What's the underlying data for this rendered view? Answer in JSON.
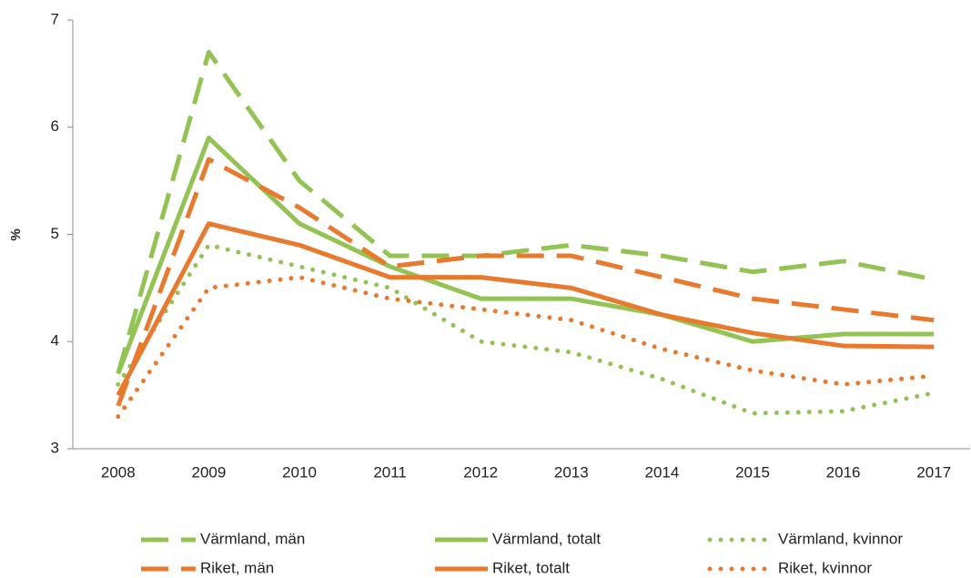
{
  "chart_data": {
    "type": "line",
    "y_label": "%",
    "categories": [
      "2008",
      "2009",
      "2010",
      "2011",
      "2012",
      "2013",
      "2014",
      "2015",
      "2016",
      "2017"
    ],
    "ylim": [
      3,
      7
    ],
    "yticks": [
      3,
      4,
      5,
      6,
      7
    ],
    "series": [
      {
        "name": "Värmland, män",
        "color": "#92c353",
        "style": "dashed",
        "values": [
          3.7,
          6.7,
          5.5,
          4.8,
          4.8,
          4.9,
          4.8,
          4.65,
          4.75,
          4.58
        ]
      },
      {
        "name": "Värmland, totalt",
        "color": "#92c353",
        "style": "solid",
        "values": [
          3.7,
          5.9,
          5.1,
          4.7,
          4.4,
          4.4,
          4.25,
          4.0,
          4.07,
          4.07
        ]
      },
      {
        "name": "Värmland, kvinnor",
        "color": "#92c353",
        "style": "dotted",
        "values": [
          3.6,
          4.9,
          4.7,
          4.5,
          4.0,
          3.9,
          3.65,
          3.33,
          3.35,
          3.52
        ]
      },
      {
        "name": "Riket, män",
        "color": "#e8792d",
        "style": "dashed",
        "values": [
          3.4,
          5.7,
          5.25,
          4.7,
          4.8,
          4.8,
          4.6,
          4.4,
          4.3,
          4.2
        ]
      },
      {
        "name": "Riket, totalt",
        "color": "#e8792d",
        "style": "solid",
        "values": [
          3.5,
          5.1,
          4.9,
          4.6,
          4.6,
          4.5,
          4.25,
          4.08,
          3.96,
          3.95
        ]
      },
      {
        "name": "Riket, kvinnor",
        "color": "#e8792d",
        "style": "dotted",
        "values": [
          3.3,
          4.5,
          4.6,
          4.4,
          4.3,
          4.2,
          3.93,
          3.73,
          3.6,
          3.68
        ]
      }
    ]
  }
}
